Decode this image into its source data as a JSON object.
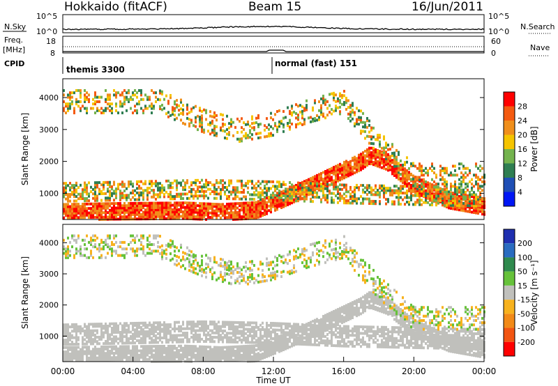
{
  "header": {
    "radar": "Hokkaido (fitACF)",
    "beam": "Beam 15",
    "date": "16/Jun/2011"
  },
  "top_panels": {
    "nsky_label": "N.Sky",
    "nsky_tick_top": "10^5",
    "nsky_tick_bottom": "10^0",
    "nsearch_label": "N.Search",
    "freq_label_1": "Freq.",
    "freq_label_2": "[MHz]",
    "freq_tick_top": "18",
    "freq_tick_bottom": "8",
    "nave_label": "Nave",
    "nave_tick_top": "60",
    "nave_tick_bottom": "0",
    "cpid_label": "CPID",
    "cpid_1": "themis 3300",
    "cpid_2": "normal (fast) 151"
  },
  "chart_data": [
    {
      "type": "heatmap",
      "name": "power",
      "ylabel": "Slant Range [km]",
      "yticks": [
        "1000",
        "2000",
        "3000",
        "4000"
      ],
      "ylim": [
        180,
        4590
      ],
      "xlim_hours": [
        0,
        24
      ],
      "colorbar_title": "Power [dB]",
      "colorbar_ticks": [
        "4",
        "8",
        "12",
        "16",
        "20",
        "24",
        "28"
      ],
      "colorbar_colors": [
        "#0016f5",
        "#1f4fb5",
        "#2f7e52",
        "#74b34e",
        "#f5c400",
        "#f08f1c",
        "#f45a10",
        "#ff0000"
      ],
      "bands": [
        {
          "x": [
            0,
            3,
            7,
            9,
            11,
            12.5,
            14,
            15.5,
            17,
            17.5,
            18.5,
            20,
            22,
            24
          ],
          "y": [
            420,
            450,
            470,
            420,
            480,
            820,
            1200,
            1600,
            2000,
            2200,
            2000,
            1300,
            800,
            600
          ],
          "halfwidth": 260,
          "density": 0.9,
          "cmin": 5,
          "cmax": 7
        },
        {
          "x": [
            0,
            4,
            8,
            12,
            16,
            20,
            24
          ],
          "y": [
            1050,
            1100,
            1150,
            1100,
            1000,
            950,
            900
          ],
          "halfwidth": 300,
          "density": 0.55,
          "cmin": 2,
          "cmax": 6
        },
        {
          "x": [
            5.5,
            8,
            10,
            12,
            14,
            16,
            18,
            20
          ],
          "y": [
            3900,
            3300,
            3000,
            3200,
            3600,
            3900,
            2600,
            1600
          ],
          "halfwidth": 380,
          "density": 0.35,
          "cmin": 2,
          "cmax": 6
        }
      ]
    },
    {
      "type": "heatmap",
      "name": "velocity",
      "ylabel": "Slant Range [km]",
      "yticks": [
        "1000",
        "2000",
        "3000",
        "4000"
      ],
      "ylim": [
        180,
        4590
      ],
      "xlim_hours": [
        0,
        24
      ],
      "xticks": [
        "00:00",
        "04:00",
        "08:00",
        "12:00",
        "16:00",
        "20:00",
        "00:00"
      ],
      "xlabel": "Time UT",
      "colorbar_title": "Velocity [m s⁻¹]",
      "colorbar_ticks": [
        "200",
        "100",
        "50",
        "15",
        "-15",
        "-50",
        "-100",
        "-200"
      ],
      "colorbar_colors": [
        "#1f2fb0",
        "#2a6cc0",
        "#2f8a4e",
        "#66c23a",
        "#c0c0bc",
        "#f7b21e",
        "#f28a18",
        "#f25512",
        "#ff0000"
      ],
      "bands": [
        {
          "x": [
            0,
            3,
            7,
            9,
            11,
            12.5,
            14,
            15.5,
            17,
            17.5,
            18.5,
            20,
            22,
            24
          ],
          "y": [
            420,
            450,
            470,
            420,
            480,
            820,
            1200,
            1600,
            2000,
            2200,
            2000,
            1300,
            800,
            600
          ],
          "halfwidth": 280,
          "density": 0.9,
          "cmin": 4,
          "cmax": 4
        },
        {
          "x": [
            0,
            4,
            8,
            12,
            16,
            20,
            24
          ],
          "y": [
            1050,
            1100,
            1150,
            1100,
            1000,
            950,
            900
          ],
          "halfwidth": 320,
          "density": 0.7,
          "cmin": 4,
          "cmax": 4
        },
        {
          "x": [
            5.5,
            8,
            10,
            12,
            14,
            16,
            18,
            20
          ],
          "y": [
            3900,
            3300,
            3000,
            3200,
            3600,
            3900,
            2600,
            1600
          ],
          "halfwidth": 380,
          "density": 0.35,
          "cmin": 3,
          "cmax": 5
        }
      ]
    }
  ]
}
